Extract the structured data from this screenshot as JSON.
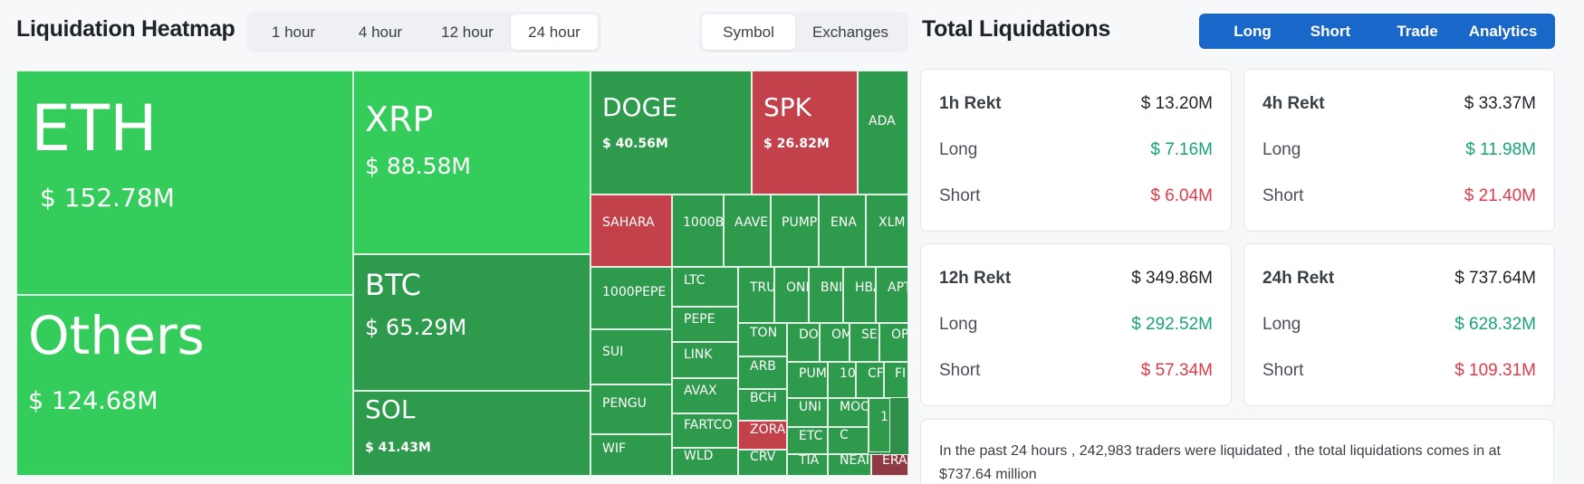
{
  "heatmap": {
    "title": "Liquidation Heatmap",
    "time_options": [
      "1 hour",
      "4 hour",
      "12 hour",
      "24 hour"
    ],
    "time_selected": 3,
    "view_options": [
      "Symbol",
      "Exchanges"
    ],
    "view_selected": 0,
    "colors": {
      "green": "#34cc5a",
      "dark_green": "#2e9a4c",
      "red": "#c3414a",
      "dark_red": "#8f3a44"
    },
    "cells": [
      {
        "symbol": "ETH",
        "amount": "$ 152.78M"
      },
      {
        "symbol": "Others",
        "amount": "$ 124.68M"
      },
      {
        "symbol": "XRP",
        "amount": "$ 88.58M"
      },
      {
        "symbol": "BTC",
        "amount": "$ 65.29M"
      },
      {
        "symbol": "SOL",
        "amount": "$ 41.43M"
      },
      {
        "symbol": "DOGE",
        "amount": "$ 40.56M"
      },
      {
        "symbol": "SPK",
        "amount": "$ 26.82M"
      },
      {
        "symbol": "ADA",
        "amount": ""
      },
      {
        "symbol": "SAHARA",
        "amount": ""
      },
      {
        "symbol": "1000B",
        "amount": ""
      },
      {
        "symbol": "AAVE",
        "amount": ""
      },
      {
        "symbol": "PUMP",
        "amount": ""
      },
      {
        "symbol": "ENA",
        "amount": ""
      },
      {
        "symbol": "XLM",
        "amount": ""
      },
      {
        "symbol": "1000PEPE",
        "amount": ""
      },
      {
        "symbol": "SUI",
        "amount": ""
      },
      {
        "symbol": "PENGU",
        "amount": ""
      },
      {
        "symbol": "WIF",
        "amount": ""
      },
      {
        "symbol": "LTC",
        "amount": ""
      },
      {
        "symbol": "PEPE",
        "amount": ""
      },
      {
        "symbol": "LINK",
        "amount": ""
      },
      {
        "symbol": "AVAX",
        "amount": ""
      },
      {
        "symbol": "FARTCO",
        "amount": ""
      },
      {
        "symbol": "WLD",
        "amount": ""
      },
      {
        "symbol": "TRU",
        "amount": ""
      },
      {
        "symbol": "OND",
        "amount": ""
      },
      {
        "symbol": "BNI",
        "amount": ""
      },
      {
        "symbol": "HBA",
        "amount": ""
      },
      {
        "symbol": "APT",
        "amount": ""
      },
      {
        "symbol": "TON",
        "amount": ""
      },
      {
        "symbol": "DO",
        "amount": ""
      },
      {
        "symbol": "OM",
        "amount": ""
      },
      {
        "symbol": "SE",
        "amount": ""
      },
      {
        "symbol": "OP",
        "amount": ""
      },
      {
        "symbol": "ARB",
        "amount": ""
      },
      {
        "symbol": "PUM",
        "amount": ""
      },
      {
        "symbol": "10",
        "amount": ""
      },
      {
        "symbol": "CF",
        "amount": ""
      },
      {
        "symbol": "FI",
        "amount": ""
      },
      {
        "symbol": "BCH",
        "amount": ""
      },
      {
        "symbol": "UNI",
        "amount": ""
      },
      {
        "symbol": "MOO",
        "amount": ""
      },
      {
        "symbol": "C",
        "amount": ""
      },
      {
        "symbol": "1",
        "amount": ""
      },
      {
        "symbol": "ZORA",
        "amount": ""
      },
      {
        "symbol": "ETC",
        "amount": ""
      },
      {
        "symbol": "CRV",
        "amount": ""
      },
      {
        "symbol": "TIA",
        "amount": ""
      },
      {
        "symbol": "NEAI",
        "amount": ""
      },
      {
        "symbol": "ERA",
        "amount": ""
      }
    ]
  },
  "totals": {
    "title": "Total Liquidations",
    "buttons": [
      "Long",
      "Short",
      "Trade",
      "Analytics"
    ],
    "cards": [
      {
        "period": "1h Rekt",
        "total": "$ 13.20M",
        "long_label": "Long",
        "long": "$ 7.16M",
        "short_label": "Short",
        "short": "$ 6.04M"
      },
      {
        "period": "4h Rekt",
        "total": "$ 33.37M",
        "long_label": "Long",
        "long": "$ 11.98M",
        "short_label": "Short",
        "short": "$ 21.40M"
      },
      {
        "period": "12h Rekt",
        "total": "$ 349.86M",
        "long_label": "Long",
        "long": "$ 292.52M",
        "short_label": "Short",
        "short": "$ 57.34M"
      },
      {
        "period": "24h Rekt",
        "total": "$ 737.64M",
        "long_label": "Long",
        "long": "$ 628.32M",
        "short_label": "Short",
        "short": "$ 109.31M"
      }
    ],
    "summary": "In the past 24 hours , 242,983 traders were liquidated , the total liquidations comes in at $737.64 million"
  }
}
